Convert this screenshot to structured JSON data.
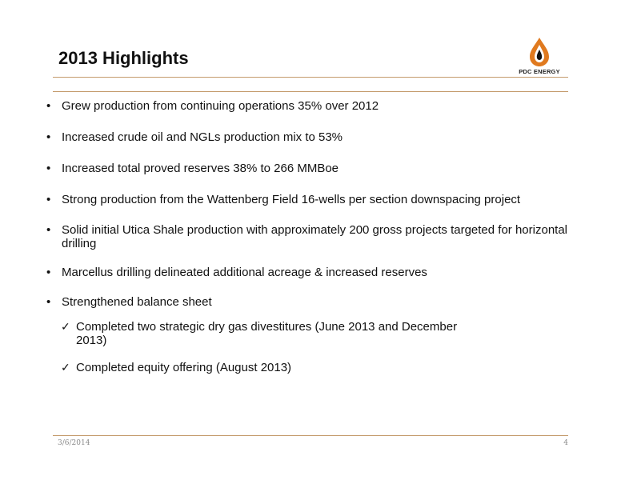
{
  "slide": {
    "title": "2013 Highlights",
    "logo_text": "PDC ENERGY",
    "brand_color": "#e07a1f",
    "rule_color": "#c49a6c",
    "bullets": [
      {
        "text": "Grew production from continuing operations 35% over 2012"
      },
      {
        "text": "Increased crude oil and NGLs production mix to 53%"
      },
      {
        "text": "Increased total proved reserves 38% to 266 MMBoe"
      },
      {
        "text": "Strong production from the Wattenberg Field 16-wells per section downspacing project"
      },
      {
        "text": "Solid initial Utica Shale production with approximately 200 gross projects targeted for horizontal drilling"
      },
      {
        "text": "Marcellus drilling delineated additional acreage & increased reserves"
      },
      {
        "text": "Strengthened balance sheet"
      }
    ],
    "sub_bullets": [
      {
        "text": "Completed two strategic dry gas divestitures (June 2013 and December 2013)"
      },
      {
        "text": "Completed equity offering (August 2013)"
      }
    ],
    "bullet_glyph": "•",
    "check_glyph": "✓"
  },
  "footer": {
    "date": "3/6/2014",
    "page_number": "4"
  }
}
